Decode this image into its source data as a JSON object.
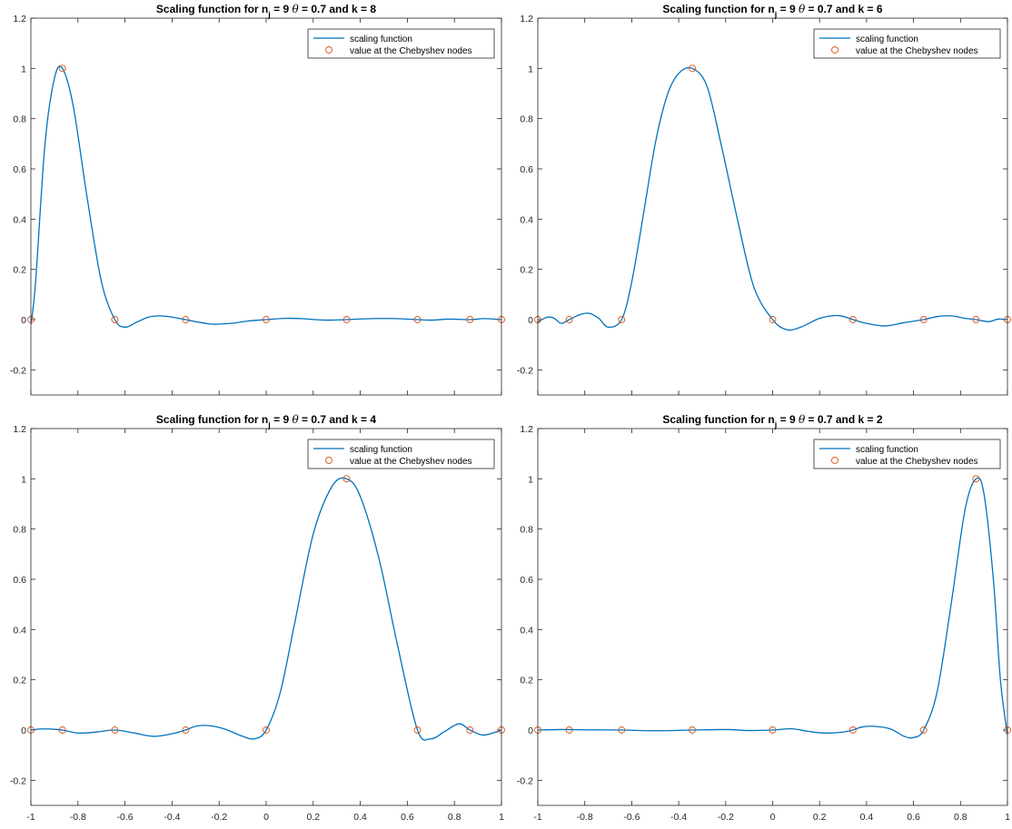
{
  "figure": {
    "colors": {
      "line": "#0072BD",
      "markers": "#D95319",
      "axes": "#262626",
      "background": "#ffffff"
    }
  },
  "chart_data": [
    {
      "type": "line",
      "title": {
        "prefix": "Scaling function for n",
        "subscript": "j",
        "middle": " = 9  ",
        "theta": "θ",
        "suffix": " =  0.7  and k = 8"
      },
      "xlim": [
        -1,
        1
      ],
      "ylim": [
        -0.3,
        1.2
      ],
      "xticks": [],
      "yticks": [
        -0.2,
        0,
        0.2,
        0.4,
        0.6,
        0.8,
        1,
        1.2
      ],
      "legend": {
        "position": "top-right",
        "entries": [
          "scaling function",
          "value at the Chebyshev nodes"
        ]
      },
      "series": [
        {
          "name": "scaling function",
          "style": "line",
          "x": [
            -1,
            -0.98,
            -0.94,
            -0.9,
            -0.866,
            -0.82,
            -0.76,
            -0.7,
            -0.643,
            -0.6,
            -0.55,
            -0.5,
            -0.45,
            -0.4,
            -0.342,
            -0.3,
            -0.23,
            -0.15,
            -0.08,
            0,
            0.08,
            0.15,
            0.25,
            0.342,
            0.45,
            0.55,
            0.643,
            0.7,
            0.78,
            0.866,
            0.93,
            1
          ],
          "y": [
            -0.02,
            0.15,
            0.7,
            0.96,
            1,
            0.85,
            0.48,
            0.15,
            0,
            -0.03,
            -0.01,
            0.01,
            0.015,
            0.01,
            0,
            -0.008,
            -0.018,
            -0.015,
            -0.006,
            0,
            0.005,
            0.004,
            -0.002,
            0,
            0.004,
            0.004,
            0,
            -0.002,
            0.002,
            0,
            0.004,
            0
          ]
        },
        {
          "name": "value at the Chebyshev nodes",
          "style": "markers",
          "x": [
            -1,
            -0.866,
            -0.643,
            -0.342,
            0,
            0.342,
            0.643,
            0.866,
            1
          ],
          "y": [
            0,
            1,
            0,
            0,
            0,
            0,
            0,
            0,
            0
          ]
        }
      ]
    },
    {
      "type": "line",
      "title": {
        "prefix": "Scaling function for n",
        "subscript": "j",
        "middle": " = 9  ",
        "theta": "θ",
        "suffix": " =  0.7  and k = 6"
      },
      "xlim": [
        -1,
        1
      ],
      "ylim": [
        -0.3,
        1.2
      ],
      "xticks": [],
      "yticks": [
        -0.2,
        0,
        0.2,
        0.4,
        0.6,
        0.8,
        1,
        1.2
      ],
      "legend": {
        "position": "top-right",
        "entries": [
          "scaling function",
          "value at the Chebyshev nodes"
        ]
      },
      "series": [
        {
          "name": "scaling function",
          "style": "line",
          "x": [
            -1,
            -0.96,
            -0.93,
            -0.9,
            -0.866,
            -0.82,
            -0.78,
            -0.74,
            -0.7,
            -0.643,
            -0.6,
            -0.55,
            -0.5,
            -0.45,
            -0.4,
            -0.342,
            -0.28,
            -0.22,
            -0.15,
            -0.08,
            0,
            0.06,
            0.12,
            0.2,
            0.28,
            0.342,
            0.4,
            0.48,
            0.56,
            0.643,
            0.7,
            0.76,
            0.82,
            0.866,
            0.92,
            0.96,
            1
          ],
          "y": [
            -0.01,
            0.01,
            0.005,
            -0.015,
            0,
            0.02,
            0.025,
            0.005,
            -0.03,
            0,
            0.15,
            0.42,
            0.7,
            0.89,
            0.98,
            1,
            0.93,
            0.7,
            0.4,
            0.13,
            0,
            -0.04,
            -0.03,
            0.005,
            0.016,
            0,
            -0.015,
            -0.025,
            -0.012,
            0,
            0.012,
            0.015,
            0.005,
            0,
            -0.008,
            0.002,
            0
          ]
        },
        {
          "name": "value at the Chebyshev nodes",
          "style": "markers",
          "x": [
            -1,
            -0.866,
            -0.643,
            -0.342,
            0,
            0.342,
            0.643,
            0.866,
            1
          ],
          "y": [
            0,
            0,
            0,
            1,
            0,
            0,
            0,
            0,
            0
          ]
        }
      ]
    },
    {
      "type": "line",
      "title": {
        "prefix": "Scaling function for n",
        "subscript": "j",
        "middle": " = 9  ",
        "theta": "θ",
        "suffix": " =  0.7  and k = 4"
      },
      "xlim": [
        -1,
        1
      ],
      "ylim": [
        -0.3,
        1.2
      ],
      "xticks": [
        -1,
        -0.8,
        -0.6,
        -0.4,
        -0.2,
        0,
        0.2,
        0.4,
        0.6,
        0.8,
        1
      ],
      "yticks": [
        -0.2,
        0,
        0.2,
        0.4,
        0.6,
        0.8,
        1,
        1.2
      ],
      "legend": {
        "position": "top-right",
        "entries": [
          "scaling function",
          "value at the Chebyshev nodes"
        ]
      },
      "series": [
        {
          "name": "scaling function",
          "style": "line",
          "x": [
            -1,
            -0.96,
            -0.92,
            -0.866,
            -0.8,
            -0.72,
            -0.643,
            -0.56,
            -0.48,
            -0.4,
            -0.342,
            -0.3,
            -0.25,
            -0.18,
            -0.1,
            -0.05,
            0,
            0.06,
            0.12,
            0.2,
            0.28,
            0.342,
            0.4,
            0.48,
            0.56,
            0.643,
            0.7,
            0.76,
            0.82,
            0.866,
            0.92,
            0.97,
            1
          ],
          "y": [
            0,
            0.004,
            0.004,
            0,
            -0.012,
            -0.008,
            0,
            -0.012,
            -0.025,
            -0.015,
            0,
            0.015,
            0.018,
            0.005,
            -0.025,
            -0.035,
            0,
            0.15,
            0.42,
            0.78,
            0.97,
            1,
            0.93,
            0.68,
            0.33,
            0,
            -0.035,
            -0.005,
            0.025,
            0,
            -0.02,
            -0.01,
            0
          ]
        },
        {
          "name": "value at the Chebyshev nodes",
          "style": "markers",
          "x": [
            -1,
            -0.866,
            -0.643,
            -0.342,
            0,
            0.342,
            0.643,
            0.866,
            1
          ],
          "y": [
            0,
            0,
            0,
            0,
            0,
            1,
            0,
            0,
            0
          ]
        }
      ]
    },
    {
      "type": "line",
      "title": {
        "prefix": "Scaling function for n",
        "subscript": "j",
        "middle": " = 9  ",
        "theta": "θ",
        "suffix": " =  0.7  and k = 2"
      },
      "xlim": [
        -1,
        1
      ],
      "ylim": [
        -0.3,
        1.2
      ],
      "xticks": [
        -1,
        -0.8,
        -0.6,
        -0.4,
        -0.2,
        0,
        0.2,
        0.4,
        0.6,
        0.8,
        1
      ],
      "yticks": [
        -0.2,
        0,
        0.2,
        0.4,
        0.6,
        0.8,
        1,
        1.2
      ],
      "legend": {
        "position": "top-right",
        "entries": [
          "scaling function",
          "value at the Chebyshev nodes"
        ]
      },
      "series": [
        {
          "name": "scaling function",
          "style": "line",
          "x": [
            -1,
            -0.9,
            -0.8,
            -0.643,
            -0.5,
            -0.342,
            -0.2,
            -0.1,
            0,
            0.08,
            0.15,
            0.22,
            0.3,
            0.342,
            0.38,
            0.43,
            0.5,
            0.56,
            0.6,
            0.643,
            0.7,
            0.76,
            0.82,
            0.866,
            0.9,
            0.94,
            0.97,
            1
          ],
          "y": [
            0,
            0.002,
            0.001,
            0,
            -0.003,
            0,
            0.002,
            -0.002,
            0,
            0.005,
            -0.005,
            -0.012,
            -0.008,
            0,
            0.012,
            0.015,
            0.005,
            -0.025,
            -0.03,
            0,
            0.15,
            0.5,
            0.88,
            1,
            0.94,
            0.6,
            0.2,
            -0.02
          ]
        },
        {
          "name": "value at the Chebyshev nodes",
          "style": "markers",
          "x": [
            -1,
            -0.866,
            -0.643,
            -0.342,
            0,
            0.342,
            0.643,
            0.866,
            1
          ],
          "y": [
            0,
            0,
            0,
            0,
            0,
            0,
            0,
            1,
            0
          ]
        }
      ]
    }
  ]
}
